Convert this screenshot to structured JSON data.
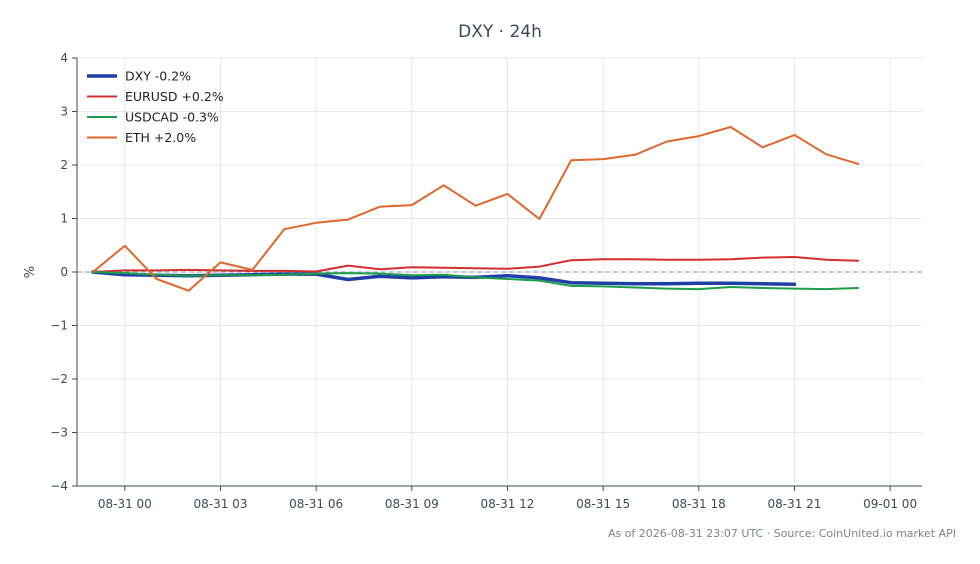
{
  "chart_data": {
    "type": "line",
    "title": "DXY · 24h",
    "ylabel": "%",
    "xlabel": "",
    "ylim": [
      -4,
      4
    ],
    "yticks": [
      4,
      3,
      2,
      1,
      0,
      -1,
      -2,
      -3,
      -4
    ],
    "ytick_labels": [
      "4",
      "3",
      "2",
      "1",
      "0",
      "−1",
      "−2",
      "−3",
      "−4"
    ],
    "xlim": [
      -1.5,
      25
    ],
    "xticks": [
      0,
      3,
      6,
      9,
      12,
      15,
      18,
      21,
      24
    ],
    "xtick_labels": [
      "08-31 00",
      "08-31 03",
      "08-31 06",
      "08-31 09",
      "08-31 12",
      "08-31 15",
      "08-31 18",
      "08-31 21",
      "09-01 00"
    ],
    "grid": true,
    "zero_line": true,
    "legend_position": "top-left",
    "series": [
      {
        "name": "DXY -0.2%",
        "color": "#1f3fa6",
        "width": 3.5,
        "x": [
          -1,
          0,
          1,
          2,
          3,
          4,
          5,
          6,
          7,
          8,
          9,
          10,
          11,
          12,
          13,
          14,
          15,
          16,
          17,
          18,
          19,
          20,
          21
        ],
        "values": [
          0.0,
          -0.05,
          -0.06,
          -0.07,
          -0.06,
          -0.05,
          -0.04,
          -0.04,
          -0.14,
          -0.08,
          -0.11,
          -0.09,
          -0.1,
          -0.07,
          -0.11,
          -0.2,
          -0.21,
          -0.22,
          -0.22,
          -0.21,
          -0.21,
          -0.22,
          -0.23
        ]
      },
      {
        "name": "EURUSD +0.2%",
        "color": "#d32f2f",
        "width": 2,
        "x": [
          -1,
          0,
          1,
          2,
          3,
          4,
          5,
          6,
          7,
          8,
          9,
          10,
          11,
          12,
          13,
          14,
          15,
          16,
          17,
          18,
          19,
          20,
          21,
          22,
          23
        ],
        "values": [
          0.0,
          0.03,
          0.03,
          0.04,
          0.03,
          0.02,
          0.02,
          0.01,
          0.12,
          0.05,
          0.09,
          0.08,
          0.07,
          0.06,
          0.1,
          0.22,
          0.24,
          0.24,
          0.23,
          0.23,
          0.24,
          0.27,
          0.28,
          0.23,
          0.21
        ]
      },
      {
        "name": "USDCAD -0.3%",
        "color": "#1e9e4a",
        "width": 2,
        "x": [
          -1,
          0,
          1,
          2,
          3,
          4,
          5,
          6,
          7,
          8,
          9,
          10,
          11,
          12,
          13,
          14,
          15,
          16,
          17,
          18,
          19,
          20,
          21,
          22,
          23
        ],
        "values": [
          0.0,
          -0.02,
          -0.05,
          -0.07,
          -0.06,
          -0.06,
          -0.05,
          -0.03,
          -0.02,
          -0.03,
          -0.06,
          -0.05,
          -0.1,
          -0.13,
          -0.16,
          -0.26,
          -0.27,
          -0.29,
          -0.31,
          -0.32,
          -0.28,
          -0.3,
          -0.31,
          -0.32,
          -0.3
        ]
      },
      {
        "name": "ETH +2.0%",
        "color": "#e0672b",
        "width": 2,
        "x": [
          -1,
          0,
          1,
          2,
          3,
          4,
          5,
          6,
          7,
          8,
          9,
          10,
          11,
          12,
          13,
          14,
          15,
          16,
          17,
          18,
          19,
          20,
          21,
          22,
          23
        ],
        "values": [
          0.0,
          0.49,
          -0.13,
          -0.35,
          0.18,
          0.04,
          0.8,
          0.92,
          0.98,
          1.22,
          1.25,
          1.62,
          1.24,
          1.46,
          0.99,
          2.09,
          2.11,
          2.19,
          2.44,
          2.54,
          2.71,
          2.33,
          2.56,
          2.2,
          2.02
        ]
      }
    ]
  },
  "footer": {
    "text": "As of 2026-08-31 23:07 UTC · Source: CoinUnited.io market API"
  }
}
